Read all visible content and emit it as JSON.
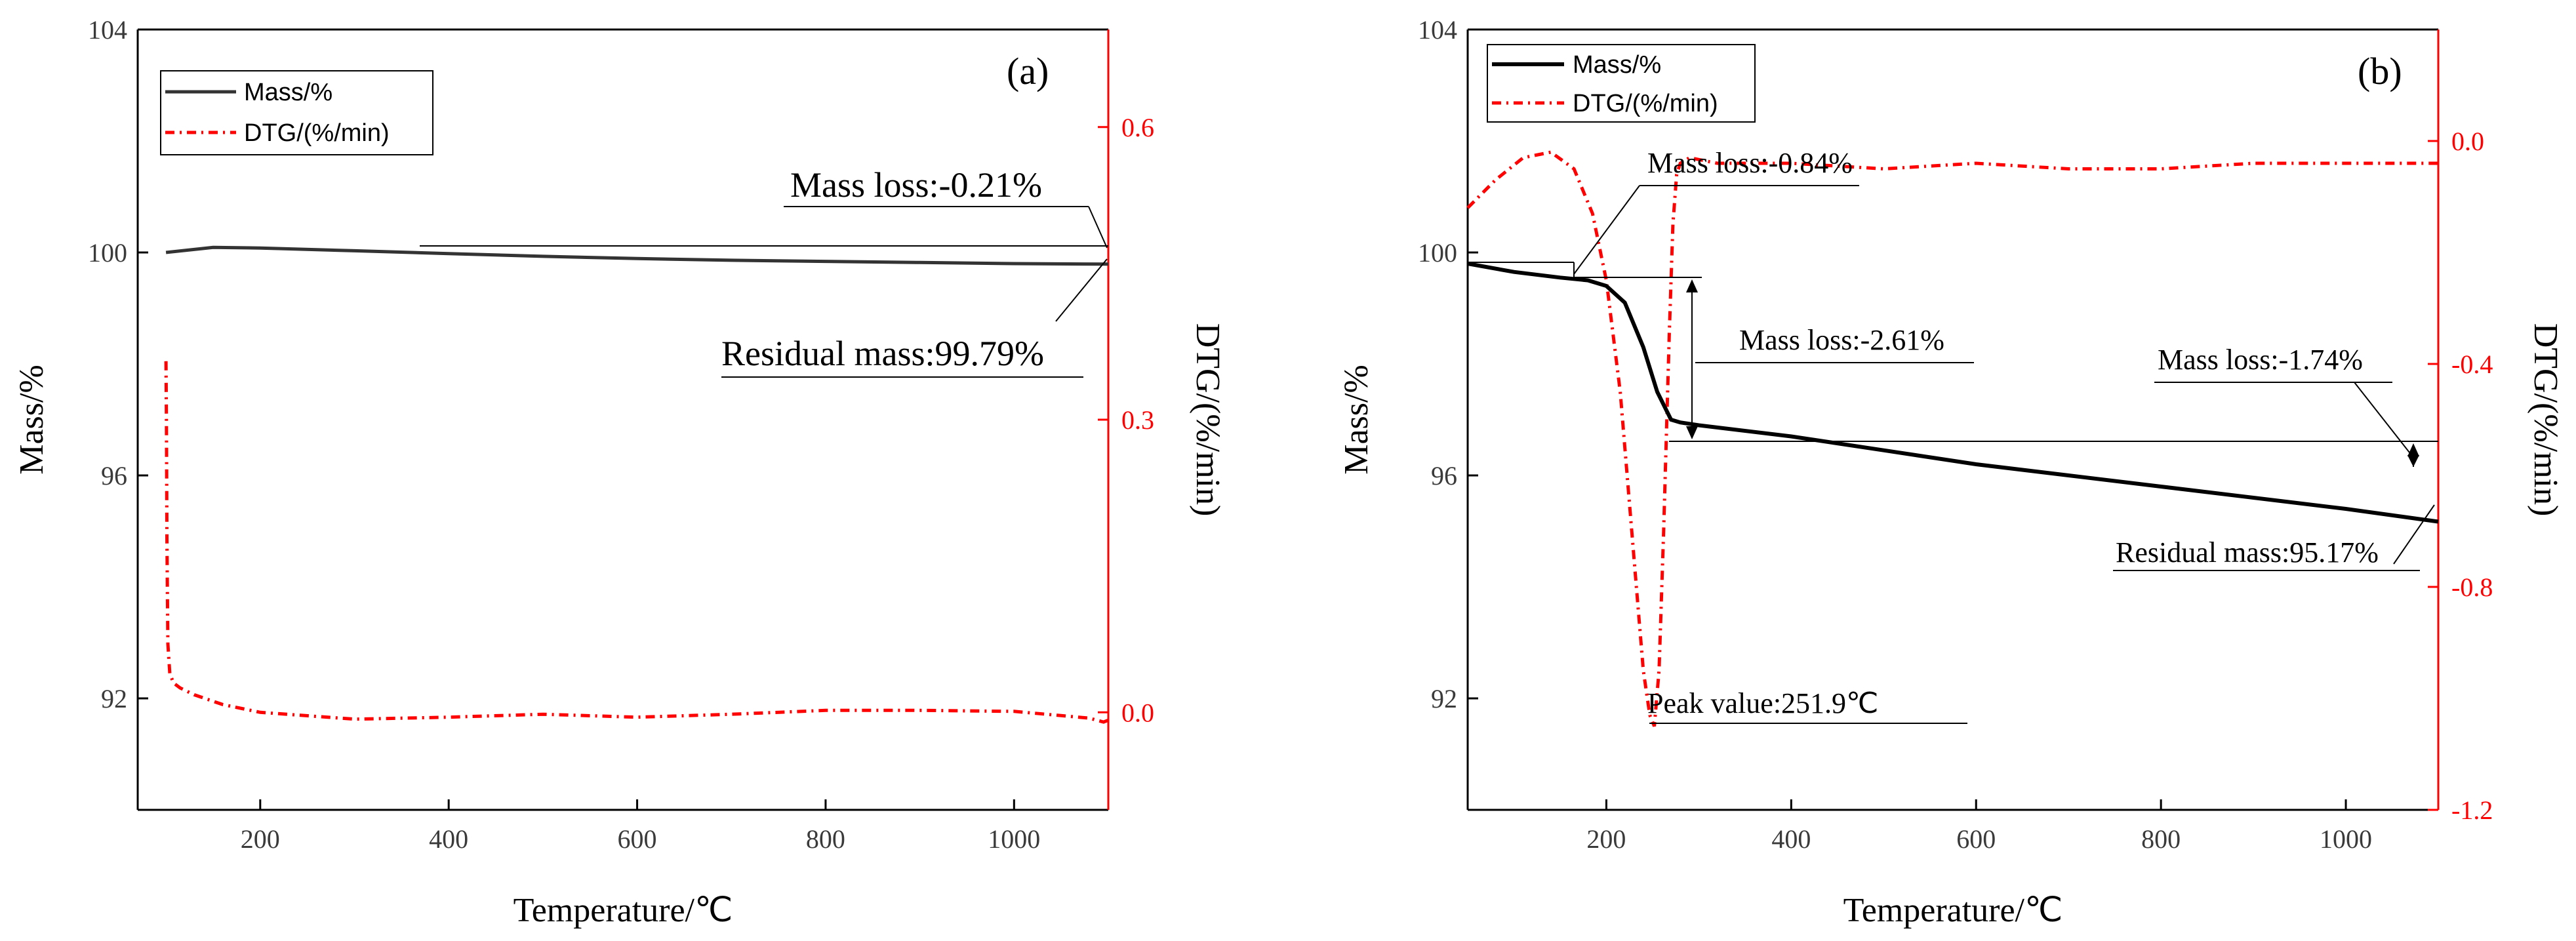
{
  "chart_data": [
    {
      "panel": "(a)",
      "type": "line",
      "xlabel": "Temperature/℃",
      "ylabel": "Mass/%",
      "y2label": "DTG/(%/min)",
      "xlim": [
        70,
        1100
      ],
      "ylim": [
        90,
        104
      ],
      "y2lim": [
        -0.1,
        0.7
      ],
      "x_ticks": [
        200,
        400,
        600,
        800,
        1000
      ],
      "y_ticks": [
        92,
        96,
        100,
        104
      ],
      "y2_ticks": [
        0.0,
        0.3,
        0.6
      ],
      "x_tick_labels": [
        "200",
        "400",
        "600",
        "800",
        "1000"
      ],
      "y_tick_labels": [
        "92",
        "96",
        "100",
        "104"
      ],
      "y2_tick_labels": [
        "0.0",
        "0.3",
        "0.6"
      ],
      "legend": [
        "Mass/%",
        "DTG/(%/min)"
      ],
      "series": [
        {
          "name": "Mass/%",
          "color": "#333333",
          "axis": "left",
          "x": [
            100,
            150,
            200,
            300,
            400,
            500,
            600,
            700,
            800,
            900,
            1000,
            1100
          ],
          "y": [
            100.0,
            100.09,
            100.08,
            100.03,
            99.98,
            99.93,
            99.89,
            99.86,
            99.84,
            99.82,
            99.8,
            99.79
          ]
        },
        {
          "name": "DTG/(%/min)",
          "color": "#ff0000",
          "axis": "right",
          "x": [
            100,
            100.5,
            101,
            102,
            104,
            108,
            115,
            130,
            160,
            200,
            300,
            400,
            500,
            600,
            700,
            800,
            900,
            1000,
            1080,
            1095,
            1100
          ],
          "y": [
            0.36,
            0.3,
            0.18,
            0.07,
            0.04,
            0.03,
            0.025,
            0.018,
            0.008,
            0.0,
            -0.007,
            -0.005,
            -0.002,
            -0.005,
            -0.002,
            0.002,
            0.002,
            0.001,
            -0.006,
            -0.01,
            -0.008
          ]
        }
      ],
      "annotations": [
        "Mass loss:-0.21%",
        "Residual mass:99.79%"
      ]
    },
    {
      "panel": "(b)",
      "type": "line",
      "xlabel": "Temperature/℃",
      "ylabel": "Mass/%",
      "y2label": "DTG/(%/min)",
      "xlim": [
        50,
        1100
      ],
      "ylim": [
        90,
        104
      ],
      "y2lim": [
        -1.2,
        0.2
      ],
      "x_ticks": [
        200,
        400,
        600,
        800,
        1000
      ],
      "y_ticks": [
        92,
        96,
        100,
        104
      ],
      "y2_ticks": [
        -1.2,
        -0.8,
        -0.4,
        0.0
      ],
      "x_tick_labels": [
        "200",
        "400",
        "600",
        "800",
        "1000"
      ],
      "y_tick_labels": [
        "92",
        "96",
        "100",
        "104"
      ],
      "y2_tick_labels": [
        "-1.2",
        "-0.8",
        "-0.4",
        "0.0"
      ],
      "legend": [
        "Mass/%",
        "DTG/(%/min)"
      ],
      "series": [
        {
          "name": "Mass/%",
          "color": "#000000",
          "axis": "left",
          "x": [
            50,
            100,
            150,
            180,
            200,
            220,
            240,
            255,
            270,
            280,
            300,
            400,
            500,
            600,
            700,
            800,
            900,
            1000,
            1100
          ],
          "y": [
            99.8,
            99.65,
            99.55,
            99.5,
            99.4,
            99.1,
            98.3,
            97.5,
            97.0,
            96.95,
            96.9,
            96.7,
            96.45,
            96.2,
            96.0,
            95.8,
            95.6,
            95.4,
            95.17
          ]
        },
        {
          "name": "DTG/(%/min)",
          "color": "#ff0000",
          "axis": "right",
          "x": [
            50,
            80,
            110,
            140,
            165,
            185,
            200,
            215,
            230,
            240,
            247,
            251.9,
            257,
            262,
            268,
            272,
            276,
            280,
            290,
            320,
            400,
            500,
            600,
            700,
            800,
            900,
            1000,
            1100
          ],
          "y": [
            -0.12,
            -0.07,
            -0.03,
            -0.02,
            -0.05,
            -0.13,
            -0.25,
            -0.45,
            -0.75,
            -0.95,
            -1.03,
            -1.05,
            -0.95,
            -0.7,
            -0.35,
            -0.15,
            -0.06,
            -0.04,
            -0.03,
            -0.04,
            -0.04,
            -0.05,
            -0.04,
            -0.05,
            -0.05,
            -0.04,
            -0.04,
            -0.04
          ]
        }
      ],
      "annotations": [
        "Mass loss:-0.84%",
        "Mass loss:-2.61%",
        "Mass loss:-1.74%",
        "Peak value:251.9℃",
        "Residual mass:95.17%"
      ]
    }
  ],
  "panels": {
    "a": {
      "tag": "(a)",
      "xlabel": "Temperature/℃",
      "ylabel": "Mass/%",
      "y2label": "DTG/(%/min)",
      "legend_mass": "Mass/%",
      "legend_dtg": "DTG/(%/min)",
      "annot_mass_loss": "Mass loss:-0.21%",
      "annot_residual": "Residual mass:99.79%"
    },
    "b": {
      "tag": "(b)",
      "xlabel": "Temperature/℃",
      "ylabel": "Mass/%",
      "y2label": "DTG/(%/min)",
      "legend_mass": "Mass/%",
      "legend_dtg": "DTG/(%/min)",
      "annot_loss1": "Mass loss:-0.84%",
      "annot_loss2": "Mass loss:-2.61%",
      "annot_loss3": "Mass loss:-1.74%",
      "annot_peak": "Peak value:251.9℃",
      "annot_residual": "Residual mass:95.17%"
    }
  },
  "colors": {
    "mass_a": "#333333",
    "mass_b": "#000000",
    "dtg": "#ff0000",
    "axis": "#000000"
  }
}
